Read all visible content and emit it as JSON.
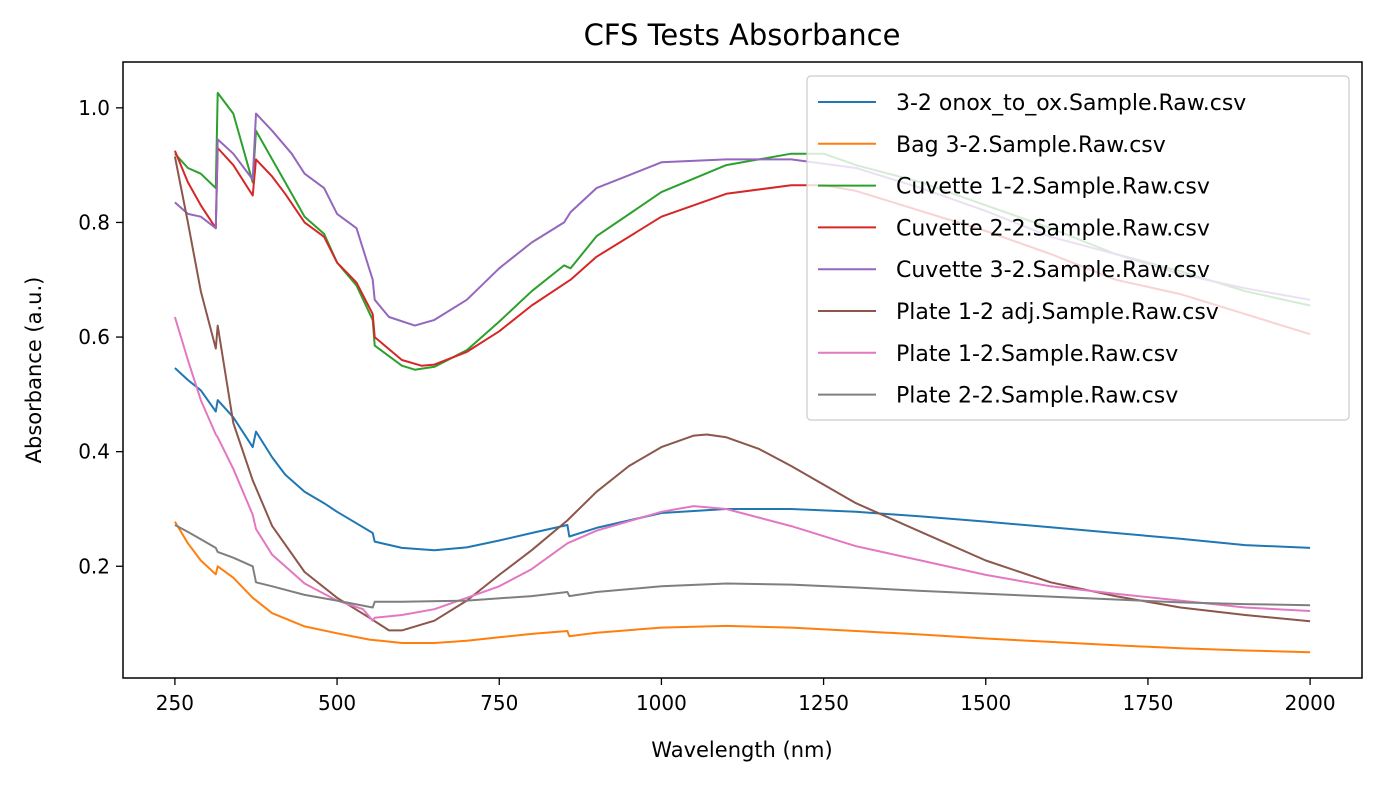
{
  "chart_data": {
    "type": "line",
    "title": "CFS Tests Absorbance",
    "xlabel": "Wavelength (nm)",
    "ylabel": "Absorbance (a.u.)",
    "xlim": [
      170,
      2080
    ],
    "ylim": [
      0.005,
      1.08
    ],
    "xticks": [
      250,
      500,
      750,
      1000,
      1250,
      1500,
      1750,
      2000
    ],
    "xtick_labels": [
      "250",
      "500",
      "750",
      "1000",
      "1250",
      "1500",
      "1750",
      "2000"
    ],
    "yticks": [
      0.2,
      0.4,
      0.6,
      0.8,
      1.0
    ],
    "ytick_labels": [
      "0.2",
      "0.4",
      "0.6",
      "0.8",
      "1.0"
    ],
    "grid": false,
    "legend_position": "top-right",
    "series": [
      {
        "name": "3-2 onox_to_ox.Sample.Raw.csv",
        "color": "#1f77b4",
        "points": [
          [
            250,
            0.546
          ],
          [
            270,
            0.525
          ],
          [
            290,
            0.507
          ],
          [
            313,
            0.47
          ],
          [
            316,
            0.49
          ],
          [
            340,
            0.46
          ],
          [
            370,
            0.408
          ],
          [
            375,
            0.435
          ],
          [
            400,
            0.39
          ],
          [
            420,
            0.36
          ],
          [
            450,
            0.33
          ],
          [
            480,
            0.31
          ],
          [
            500,
            0.295
          ],
          [
            530,
            0.275
          ],
          [
            555,
            0.258
          ],
          [
            558,
            0.243
          ],
          [
            600,
            0.232
          ],
          [
            650,
            0.228
          ],
          [
            700,
            0.233
          ],
          [
            750,
            0.245
          ],
          [
            800,
            0.258
          ],
          [
            855,
            0.272
          ],
          [
            858,
            0.252
          ],
          [
            900,
            0.267
          ],
          [
            1000,
            0.293
          ],
          [
            1100,
            0.3
          ],
          [
            1200,
            0.3
          ],
          [
            1300,
            0.295
          ],
          [
            1400,
            0.287
          ],
          [
            1500,
            0.278
          ],
          [
            1600,
            0.268
          ],
          [
            1700,
            0.258
          ],
          [
            1800,
            0.248
          ],
          [
            1900,
            0.237
          ],
          [
            2000,
            0.232
          ]
        ]
      },
      {
        "name": "Bag 3-2.Sample.Raw.csv",
        "color": "#ff7f0e",
        "points": [
          [
            250,
            0.278
          ],
          [
            270,
            0.24
          ],
          [
            290,
            0.21
          ],
          [
            313,
            0.186
          ],
          [
            316,
            0.2
          ],
          [
            340,
            0.18
          ],
          [
            370,
            0.145
          ],
          [
            400,
            0.118
          ],
          [
            450,
            0.095
          ],
          [
            500,
            0.083
          ],
          [
            550,
            0.072
          ],
          [
            600,
            0.066
          ],
          [
            650,
            0.066
          ],
          [
            700,
            0.07
          ],
          [
            750,
            0.076
          ],
          [
            800,
            0.082
          ],
          [
            855,
            0.087
          ],
          [
            858,
            0.078
          ],
          [
            900,
            0.084
          ],
          [
            1000,
            0.093
          ],
          [
            1100,
            0.096
          ],
          [
            1200,
            0.093
          ],
          [
            1300,
            0.087
          ],
          [
            1400,
            0.081
          ],
          [
            1500,
            0.074
          ],
          [
            1600,
            0.068
          ],
          [
            1700,
            0.062
          ],
          [
            1800,
            0.057
          ],
          [
            1900,
            0.053
          ],
          [
            2000,
            0.05
          ]
        ]
      },
      {
        "name": "Cuvette 1-2.Sample.Raw.csv",
        "color": "#2ca02c",
        "points": [
          [
            250,
            0.92
          ],
          [
            270,
            0.895
          ],
          [
            290,
            0.885
          ],
          [
            313,
            0.86
          ],
          [
            316,
            1.026
          ],
          [
            340,
            0.99
          ],
          [
            370,
            0.87
          ],
          [
            375,
            0.96
          ],
          [
            400,
            0.91
          ],
          [
            420,
            0.87
          ],
          [
            450,
            0.81
          ],
          [
            480,
            0.78
          ],
          [
            500,
            0.73
          ],
          [
            530,
            0.69
          ],
          [
            555,
            0.63
          ],
          [
            558,
            0.585
          ],
          [
            600,
            0.55
          ],
          [
            620,
            0.543
          ],
          [
            650,
            0.548
          ],
          [
            700,
            0.577
          ],
          [
            750,
            0.627
          ],
          [
            800,
            0.68
          ],
          [
            850,
            0.725
          ],
          [
            860,
            0.72
          ],
          [
            900,
            0.776
          ],
          [
            1000,
            0.853
          ],
          [
            1100,
            0.9
          ],
          [
            1200,
            0.92
          ],
          [
            1250,
            0.92
          ],
          [
            1300,
            0.9
          ],
          [
            1400,
            0.87
          ],
          [
            1500,
            0.83
          ],
          [
            1600,
            0.79
          ],
          [
            1700,
            0.745
          ],
          [
            1800,
            0.715
          ],
          [
            1900,
            0.68
          ],
          [
            2000,
            0.655
          ]
        ]
      },
      {
        "name": "Cuvette 2-2.Sample.Raw.csv",
        "color": "#d62728",
        "points": [
          [
            250,
            0.925
          ],
          [
            270,
            0.87
          ],
          [
            290,
            0.83
          ],
          [
            313,
            0.79
          ],
          [
            316,
            0.93
          ],
          [
            340,
            0.9
          ],
          [
            370,
            0.847
          ],
          [
            375,
            0.91
          ],
          [
            400,
            0.88
          ],
          [
            420,
            0.85
          ],
          [
            450,
            0.8
          ],
          [
            480,
            0.775
          ],
          [
            500,
            0.73
          ],
          [
            530,
            0.695
          ],
          [
            555,
            0.64
          ],
          [
            558,
            0.6
          ],
          [
            600,
            0.56
          ],
          [
            630,
            0.55
          ],
          [
            650,
            0.552
          ],
          [
            700,
            0.574
          ],
          [
            750,
            0.61
          ],
          [
            800,
            0.655
          ],
          [
            860,
            0.7
          ],
          [
            900,
            0.74
          ],
          [
            1000,
            0.81
          ],
          [
            1100,
            0.85
          ],
          [
            1200,
            0.865
          ],
          [
            1250,
            0.865
          ],
          [
            1300,
            0.855
          ],
          [
            1400,
            0.82
          ],
          [
            1500,
            0.785
          ],
          [
            1600,
            0.745
          ],
          [
            1700,
            0.7
          ],
          [
            1800,
            0.675
          ],
          [
            1900,
            0.64
          ],
          [
            2000,
            0.605
          ]
        ]
      },
      {
        "name": "Cuvette 3-2.Sample.Raw.csv",
        "color": "#9467bd",
        "points": [
          [
            250,
            0.835
          ],
          [
            270,
            0.815
          ],
          [
            290,
            0.81
          ],
          [
            313,
            0.79
          ],
          [
            316,
            0.945
          ],
          [
            340,
            0.92
          ],
          [
            370,
            0.875
          ],
          [
            375,
            0.99
          ],
          [
            400,
            0.96
          ],
          [
            430,
            0.92
          ],
          [
            450,
            0.885
          ],
          [
            480,
            0.86
          ],
          [
            500,
            0.815
          ],
          [
            530,
            0.79
          ],
          [
            555,
            0.7
          ],
          [
            558,
            0.665
          ],
          [
            580,
            0.635
          ],
          [
            620,
            0.62
          ],
          [
            650,
            0.63
          ],
          [
            700,
            0.665
          ],
          [
            750,
            0.72
          ],
          [
            800,
            0.765
          ],
          [
            850,
            0.8
          ],
          [
            860,
            0.818
          ],
          [
            900,
            0.86
          ],
          [
            1000,
            0.905
          ],
          [
            1100,
            0.91
          ],
          [
            1200,
            0.91
          ],
          [
            1300,
            0.895
          ],
          [
            1400,
            0.86
          ],
          [
            1500,
            0.82
          ],
          [
            1600,
            0.775
          ],
          [
            1700,
            0.745
          ],
          [
            1800,
            0.71
          ],
          [
            1900,
            0.685
          ],
          [
            2000,
            0.665
          ]
        ]
      },
      {
        "name": "Plate 1-2 adj.Sample.Raw.csv",
        "color": "#8c564b",
        "points": [
          [
            250,
            0.915
          ],
          [
            270,
            0.8
          ],
          [
            290,
            0.68
          ],
          [
            313,
            0.58
          ],
          [
            316,
            0.62
          ],
          [
            340,
            0.45
          ],
          [
            370,
            0.35
          ],
          [
            400,
            0.27
          ],
          [
            450,
            0.19
          ],
          [
            500,
            0.145
          ],
          [
            550,
            0.11
          ],
          [
            580,
            0.088
          ],
          [
            600,
            0.088
          ],
          [
            650,
            0.105
          ],
          [
            700,
            0.14
          ],
          [
            750,
            0.185
          ],
          [
            800,
            0.228
          ],
          [
            855,
            0.28
          ],
          [
            900,
            0.33
          ],
          [
            950,
            0.375
          ],
          [
            1000,
            0.408
          ],
          [
            1050,
            0.428
          ],
          [
            1070,
            0.43
          ],
          [
            1100,
            0.425
          ],
          [
            1150,
            0.405
          ],
          [
            1200,
            0.375
          ],
          [
            1300,
            0.31
          ],
          [
            1400,
            0.26
          ],
          [
            1500,
            0.21
          ],
          [
            1600,
            0.172
          ],
          [
            1700,
            0.148
          ],
          [
            1800,
            0.128
          ],
          [
            1900,
            0.115
          ],
          [
            2000,
            0.104
          ]
        ]
      },
      {
        "name": "Plate 1-2.Sample.Raw.csv",
        "color": "#e377c2",
        "points": [
          [
            250,
            0.635
          ],
          [
            270,
            0.56
          ],
          [
            290,
            0.49
          ],
          [
            313,
            0.43
          ],
          [
            316,
            0.425
          ],
          [
            340,
            0.37
          ],
          [
            370,
            0.29
          ],
          [
            375,
            0.265
          ],
          [
            400,
            0.22
          ],
          [
            450,
            0.17
          ],
          [
            500,
            0.14
          ],
          [
            540,
            0.125
          ],
          [
            555,
            0.105
          ],
          [
            558,
            0.11
          ],
          [
            600,
            0.115
          ],
          [
            650,
            0.125
          ],
          [
            700,
            0.145
          ],
          [
            750,
            0.165
          ],
          [
            800,
            0.195
          ],
          [
            855,
            0.24
          ],
          [
            900,
            0.262
          ],
          [
            1000,
            0.295
          ],
          [
            1050,
            0.305
          ],
          [
            1100,
            0.3
          ],
          [
            1200,
            0.27
          ],
          [
            1300,
            0.235
          ],
          [
            1400,
            0.21
          ],
          [
            1500,
            0.185
          ],
          [
            1600,
            0.165
          ],
          [
            1700,
            0.152
          ],
          [
            1800,
            0.14
          ],
          [
            1900,
            0.128
          ],
          [
            2000,
            0.122
          ]
        ]
      },
      {
        "name": "Plate 2-2.Sample.Raw.csv",
        "color": "#7f7f7f",
        "points": [
          [
            250,
            0.272
          ],
          [
            270,
            0.26
          ],
          [
            290,
            0.247
          ],
          [
            313,
            0.232
          ],
          [
            316,
            0.225
          ],
          [
            340,
            0.215
          ],
          [
            370,
            0.2
          ],
          [
            375,
            0.172
          ],
          [
            400,
            0.165
          ],
          [
            450,
            0.15
          ],
          [
            500,
            0.14
          ],
          [
            555,
            0.128
          ],
          [
            558,
            0.138
          ],
          [
            600,
            0.138
          ],
          [
            700,
            0.14
          ],
          [
            800,
            0.148
          ],
          [
            855,
            0.155
          ],
          [
            858,
            0.148
          ],
          [
            900,
            0.155
          ],
          [
            1000,
            0.165
          ],
          [
            1100,
            0.17
          ],
          [
            1200,
            0.168
          ],
          [
            1300,
            0.163
          ],
          [
            1400,
            0.157
          ],
          [
            1500,
            0.152
          ],
          [
            1600,
            0.147
          ],
          [
            1700,
            0.142
          ],
          [
            1800,
            0.137
          ],
          [
            1900,
            0.134
          ],
          [
            2000,
            0.132
          ]
        ]
      }
    ]
  }
}
